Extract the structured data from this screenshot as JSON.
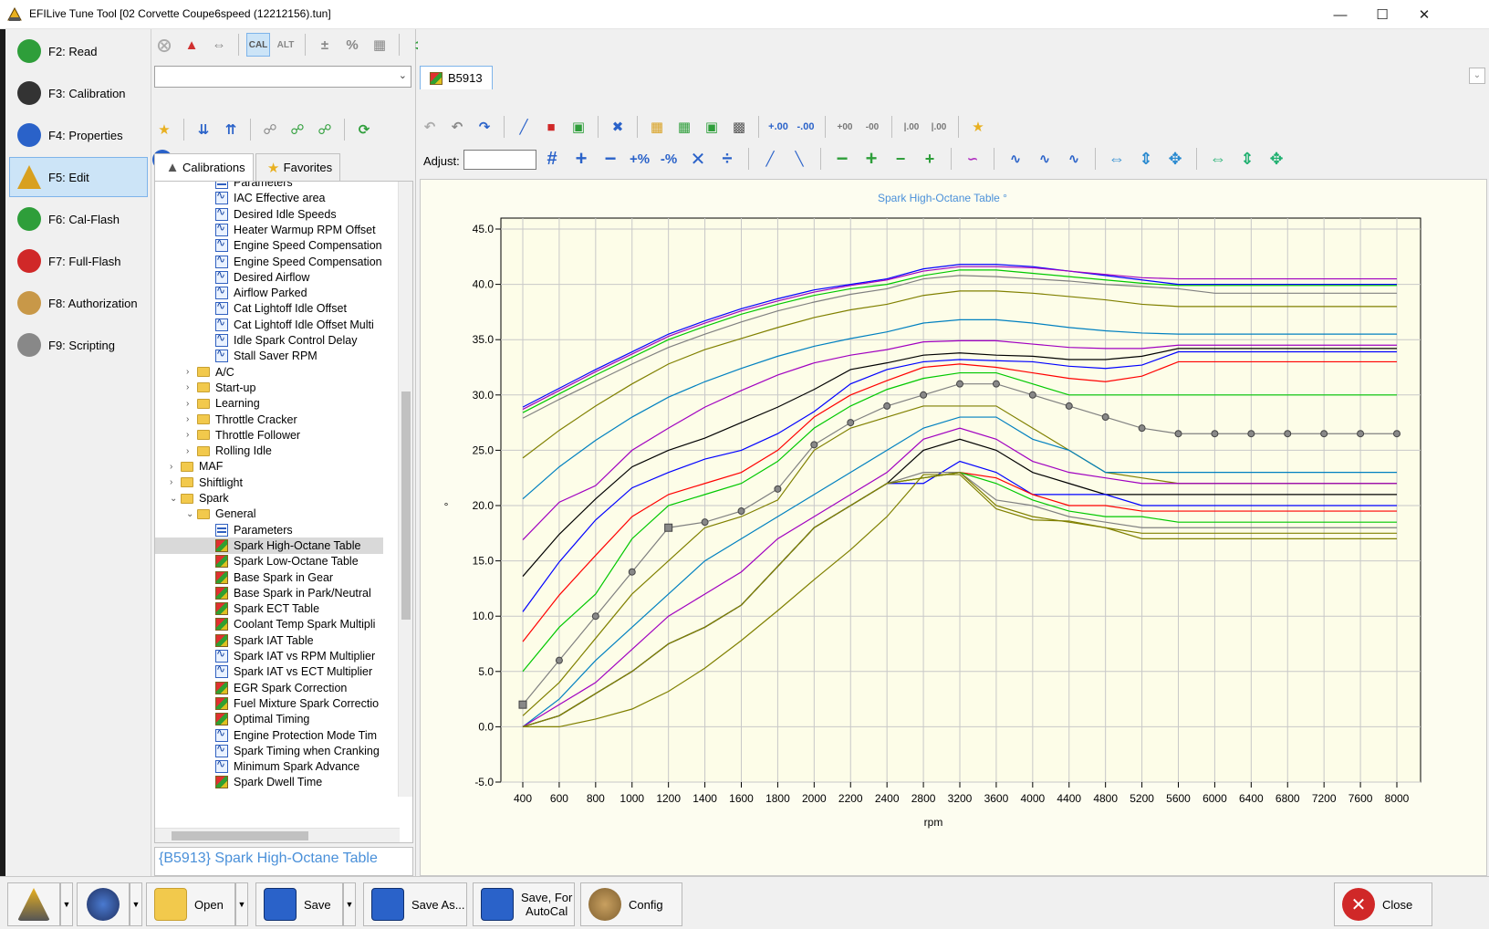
{
  "window": {
    "title": "EFILive Tune Tool [02  Corvette Coupe6speed (12212156).tun]",
    "controls": [
      "minimize",
      "maximize",
      "close"
    ]
  },
  "nav": {
    "items": [
      {
        "label": "F2: Read",
        "icon": "read-icon",
        "color": "#2e9e3a"
      },
      {
        "label": "F3: Calibration",
        "icon": "calibration-icon",
        "color": "#333333"
      },
      {
        "label": "F4: Properties",
        "icon": "info-icon",
        "color": "#2a62c9"
      },
      {
        "label": "F5: Edit",
        "icon": "edit-triangle-icon",
        "color": "#d8a020",
        "active": true
      },
      {
        "label": "F6: Cal-Flash",
        "icon": "cal-flash-icon",
        "color": "#2e9e3a"
      },
      {
        "label": "F7: Full-Flash",
        "icon": "full-flash-icon",
        "color": "#d02828"
      },
      {
        "label": "F8: Authorization",
        "icon": "key-icon",
        "color": "#c89848"
      },
      {
        "label": "F9: Scripting",
        "icon": "scripting-icon",
        "color": "#888888"
      }
    ]
  },
  "tree_panel": {
    "tabs": [
      {
        "label": "Calibrations",
        "active": true
      },
      {
        "label": "Favorites",
        "active": false
      }
    ],
    "rows": [
      {
        "label": "Parameters",
        "indent": 3,
        "icon": "tbl"
      },
      {
        "label": "IAC Effective area",
        "indent": 3,
        "icon": "chart"
      },
      {
        "label": "Desired Idle Speeds",
        "indent": 3,
        "icon": "chart"
      },
      {
        "label": "Heater Warmup RPM Offset",
        "indent": 3,
        "icon": "chart"
      },
      {
        "label": "Engine Speed Compensation",
        "indent": 3,
        "icon": "chart"
      },
      {
        "label": "Engine Speed Compensation",
        "indent": 3,
        "icon": "chart"
      },
      {
        "label": "Desired Airflow",
        "indent": 3,
        "icon": "chart"
      },
      {
        "label": "Airflow Parked",
        "indent": 3,
        "icon": "chart"
      },
      {
        "label": "Cat Lightoff Idle Offset",
        "indent": 3,
        "icon": "chart"
      },
      {
        "label": "Cat Lightoff Idle Offset Multi",
        "indent": 3,
        "icon": "chart"
      },
      {
        "label": "Idle Spark Control Delay",
        "indent": 3,
        "icon": "chart"
      },
      {
        "label": "Stall Saver RPM",
        "indent": 3,
        "icon": "chart"
      },
      {
        "label": "A/C",
        "indent": 2,
        "icon": "folder",
        "caret": "›"
      },
      {
        "label": "Start-up",
        "indent": 2,
        "icon": "folder",
        "caret": "›"
      },
      {
        "label": "Learning",
        "indent": 2,
        "icon": "folder",
        "caret": "›"
      },
      {
        "label": "Throttle Cracker",
        "indent": 2,
        "icon": "folder",
        "caret": "›"
      },
      {
        "label": "Throttle Follower",
        "indent": 2,
        "icon": "folder",
        "caret": "›"
      },
      {
        "label": "Rolling Idle",
        "indent": 2,
        "icon": "folder",
        "caret": "›"
      },
      {
        "label": "MAF",
        "indent": 1,
        "icon": "folder",
        "caret": "›"
      },
      {
        "label": "Shiftlight",
        "indent": 1,
        "icon": "folder",
        "caret": "›"
      },
      {
        "label": "Spark",
        "indent": 1,
        "icon": "folder",
        "caret": "⌄"
      },
      {
        "label": "General",
        "indent": 2,
        "icon": "folder",
        "caret": "⌄"
      },
      {
        "label": "Parameters",
        "indent": 3,
        "icon": "tbl"
      },
      {
        "label": "Spark High-Octane Table",
        "indent": 3,
        "icon": "cube",
        "selected": true
      },
      {
        "label": "Spark Low-Octane Table",
        "indent": 3,
        "icon": "cube"
      },
      {
        "label": "Base Spark in Gear",
        "indent": 3,
        "icon": "cube"
      },
      {
        "label": "Base Spark in Park/Neutral",
        "indent": 3,
        "icon": "cube"
      },
      {
        "label": "Spark ECT Table",
        "indent": 3,
        "icon": "cube"
      },
      {
        "label": "Coolant Temp Spark Multipli",
        "indent": 3,
        "icon": "cube"
      },
      {
        "label": "Spark IAT Table",
        "indent": 3,
        "icon": "cube"
      },
      {
        "label": "Spark IAT vs RPM Multiplier",
        "indent": 3,
        "icon": "chart"
      },
      {
        "label": "Spark IAT vs ECT Multiplier",
        "indent": 3,
        "icon": "chart"
      },
      {
        "label": "EGR Spark Correction",
        "indent": 3,
        "icon": "cube"
      },
      {
        "label": "Fuel Mixture Spark Correctio",
        "indent": 3,
        "icon": "cube"
      },
      {
        "label": "Optimal Timing",
        "indent": 3,
        "icon": "cube"
      },
      {
        "label": "Engine Protection Mode Tim",
        "indent": 3,
        "icon": "chart"
      },
      {
        "label": "Spark Timing when Cranking",
        "indent": 3,
        "icon": "chart"
      },
      {
        "label": "Minimum Spark Advance",
        "indent": 3,
        "icon": "chart"
      },
      {
        "label": "Spark Dwell Time",
        "indent": 3,
        "icon": "cube"
      }
    ],
    "status_text": "{B5913} Spark High-Octane Table"
  },
  "editor": {
    "tab_label": "B5913",
    "adjust_label": "Adjust:",
    "adjust_value": ""
  },
  "bottom_bar": {
    "open_label": "Open",
    "save_label": "Save",
    "save_as_label": "Save As...",
    "save_autocal_line1": "Save, For",
    "save_autocal_line2": "AutoCal",
    "config_label": "Config",
    "close_label": "Close"
  },
  "colors": {
    "series": [
      "#7a00c8",
      "#00c800",
      "#808080",
      "#808000",
      "#0080c0",
      "#000000",
      "#ff0000",
      "#0000ff",
      "#a000c0"
    ]
  },
  "chart_data": {
    "type": "line",
    "title": "Spark High-Octane Table °",
    "xlabel": "rpm",
    "ylabel": "°",
    "x": [
      400,
      600,
      800,
      1000,
      1200,
      1400,
      1600,
      1800,
      2000,
      2200,
      2400,
      2800,
      3200,
      3600,
      4000,
      4400,
      4800,
      5200,
      5600,
      6000,
      6400,
      6800,
      7200,
      7600,
      8000
    ],
    "ylim": [
      -5,
      45
    ],
    "yticks": [
      -5.0,
      0.0,
      5.0,
      10.0,
      15.0,
      20.0,
      25.0,
      30.0,
      35.0,
      40.0,
      45.0
    ],
    "grid": true,
    "selected_series_index": 9,
    "series": [
      {
        "color": "#0000ff",
        "values": [
          28.9,
          30.6,
          32.3,
          33.9,
          35.5,
          36.7,
          37.8,
          38.7,
          39.5,
          40.0,
          40.5,
          41.4,
          41.8,
          41.8,
          41.6,
          41.2,
          40.8,
          40.4,
          40.0,
          40.0,
          40.0,
          40.0,
          40.0,
          40.0,
          40.0
        ]
      },
      {
        "color": "#a000c0",
        "values": [
          28.7,
          30.4,
          32.1,
          33.7,
          35.3,
          36.5,
          37.6,
          38.5,
          39.3,
          39.9,
          40.4,
          41.2,
          41.6,
          41.6,
          41.5,
          41.2,
          40.9,
          40.6,
          40.5,
          40.5,
          40.5,
          40.5,
          40.5,
          40.5,
          40.5
        ]
      },
      {
        "color": "#00c800",
        "values": [
          28.4,
          30.1,
          31.8,
          33.4,
          35.0,
          36.2,
          37.3,
          38.2,
          39.0,
          39.6,
          40.0,
          40.8,
          41.3,
          41.3,
          41.0,
          40.7,
          40.4,
          40.1,
          39.9,
          39.9,
          39.9,
          39.9,
          39.9,
          39.9,
          39.9
        ]
      },
      {
        "color": "#808080",
        "values": [
          27.9,
          29.6,
          31.2,
          32.8,
          34.3,
          35.5,
          36.6,
          37.6,
          38.4,
          39.1,
          39.6,
          40.5,
          40.8,
          40.7,
          40.5,
          40.3,
          40.0,
          39.8,
          39.6,
          39.2,
          39.2,
          39.2,
          39.2,
          39.2,
          39.2
        ]
      },
      {
        "color": "#808000",
        "values": [
          24.3,
          26.8,
          29.0,
          31.0,
          32.8,
          34.1,
          35.1,
          36.1,
          37.0,
          37.7,
          38.2,
          39.0,
          39.4,
          39.4,
          39.2,
          38.9,
          38.6,
          38.2,
          38.0,
          38.0,
          38.0,
          38.0,
          38.0,
          38.0,
          38.0
        ]
      },
      {
        "color": "#0080c0",
        "values": [
          20.6,
          23.5,
          25.9,
          28.0,
          29.8,
          31.2,
          32.4,
          33.5,
          34.4,
          35.1,
          35.7,
          36.5,
          36.8,
          36.8,
          36.5,
          36.1,
          35.8,
          35.6,
          35.5,
          35.5,
          35.5,
          35.5,
          35.5,
          35.5,
          35.5
        ]
      },
      {
        "color": "#a000c0",
        "values": [
          16.9,
          20.3,
          21.8,
          25.0,
          27.0,
          28.9,
          30.4,
          31.8,
          32.9,
          33.6,
          34.1,
          34.8,
          34.9,
          34.9,
          34.6,
          34.3,
          34.2,
          34.2,
          34.5,
          34.5,
          34.5,
          34.5,
          34.5,
          34.5,
          34.5
        ]
      },
      {
        "color": "#000000",
        "values": [
          13.6,
          17.4,
          20.6,
          23.5,
          25.0,
          26.1,
          27.5,
          28.9,
          30.5,
          32.3,
          32.9,
          33.6,
          33.8,
          33.6,
          33.5,
          33.2,
          33.2,
          33.5,
          34.2,
          34.2,
          34.2,
          34.2,
          34.2,
          34.2,
          34.2
        ]
      },
      {
        "color": "#0000ff",
        "values": [
          10.4,
          14.9,
          18.7,
          21.6,
          23.0,
          24.2,
          25.0,
          26.5,
          28.5,
          31.0,
          32.3,
          33.0,
          33.2,
          33.1,
          33.0,
          32.6,
          32.4,
          32.7,
          33.9,
          33.9,
          33.9,
          33.9,
          33.9,
          33.9,
          33.9
        ]
      },
      {
        "color": "#808080",
        "values": [
          2.0,
          6.0,
          10.0,
          14.0,
          18.0,
          18.5,
          19.5,
          21.5,
          25.5,
          27.5,
          29.0,
          30.0,
          31.0,
          31.0,
          30.0,
          29.0,
          28.0,
          27.0,
          26.5,
          26.5,
          26.5,
          26.5,
          26.5,
          26.5,
          26.5
        ],
        "markers": true
      },
      {
        "color": "#ff0000",
        "values": [
          7.7,
          11.9,
          15.5,
          19.0,
          21.0,
          22.0,
          23.0,
          25.0,
          28.0,
          30.0,
          31.3,
          32.5,
          32.8,
          32.5,
          32.0,
          31.5,
          31.2,
          31.7,
          33.0,
          33.0,
          33.0,
          33.0,
          33.0,
          33.0,
          33.0
        ]
      },
      {
        "color": "#00c800",
        "values": [
          5.0,
          9.0,
          12.0,
          17.0,
          20.0,
          21.0,
          22.0,
          24.0,
          27.0,
          29.0,
          30.5,
          31.5,
          32.0,
          32.0,
          31.0,
          30.0,
          30.0,
          30.0,
          30.0,
          30.0,
          30.0,
          30.0,
          30.0,
          30.0,
          30.0
        ]
      },
      {
        "color": "#808000",
        "values": [
          1.0,
          4.0,
          8.0,
          12.0,
          15.0,
          18.0,
          19.0,
          20.5,
          25.0,
          27.0,
          28.0,
          29.0,
          29.0,
          29.0,
          27.0,
          25.0,
          23.0,
          22.5,
          22.0,
          22.0,
          22.0,
          22.0,
          22.0,
          22.0,
          22.0
        ]
      },
      {
        "color": "#0080c0",
        "values": [
          0.0,
          2.5,
          6.0,
          9.0,
          12.0,
          15.0,
          17.0,
          19.0,
          21.0,
          23.0,
          25.0,
          27.0,
          28.0,
          28.0,
          26.0,
          25.0,
          23.0,
          23.0,
          23.0,
          23.0,
          23.0,
          23.0,
          23.0,
          23.0,
          23.0
        ]
      },
      {
        "color": "#a000c0",
        "values": [
          0.0,
          2.0,
          4.0,
          7.0,
          10.0,
          12.0,
          14.0,
          17.0,
          19.0,
          21.0,
          23.0,
          26.0,
          27.0,
          26.0,
          24.0,
          23.0,
          22.5,
          22.0,
          22.0,
          22.0,
          22.0,
          22.0,
          22.0,
          22.0,
          22.0
        ]
      },
      {
        "color": "#000000",
        "values": [
          0.0,
          1.0,
          3.0,
          5.0,
          7.5,
          9.0,
          11.0,
          14.5,
          18.0,
          20.0,
          22.0,
          25.0,
          26.0,
          25.0,
          23.0,
          22.0,
          21.0,
          21.0,
          21.0,
          21.0,
          21.0,
          21.0,
          21.0,
          21.0,
          21.0
        ]
      },
      {
        "color": "#0000ff",
        "values": [
          0.0,
          1.0,
          3.0,
          5.0,
          7.5,
          9.0,
          11.0,
          14.5,
          18.0,
          20.0,
          22.0,
          22.0,
          24.0,
          23.0,
          21.0,
          21.0,
          21.0,
          20.0,
          20.0,
          20.0,
          20.0,
          20.0,
          20.0,
          20.0,
          20.0
        ]
      },
      {
        "color": "#ff0000",
        "values": [
          0.0,
          1.0,
          3.0,
          5.0,
          7.5,
          9.0,
          11.0,
          14.5,
          18.0,
          20.0,
          22.0,
          22.5,
          23.0,
          22.5,
          21.0,
          20.0,
          20.0,
          19.5,
          19.5,
          19.5,
          19.5,
          19.5,
          19.5,
          19.5,
          19.5
        ]
      },
      {
        "color": "#00c800",
        "values": [
          0.0,
          1.0,
          3.0,
          5.0,
          7.5,
          9.0,
          11.0,
          14.5,
          18.0,
          20.0,
          22.0,
          22.5,
          23.0,
          22.0,
          20.5,
          19.5,
          19.0,
          19.0,
          18.5,
          18.5,
          18.5,
          18.5,
          18.5,
          18.5,
          18.5
        ]
      },
      {
        "color": "#808080",
        "values": [
          0.0,
          1.0,
          3.0,
          5.0,
          7.5,
          9.0,
          11.0,
          14.5,
          18.0,
          20.0,
          22.0,
          23.0,
          23.0,
          20.5,
          20.0,
          19.0,
          18.5,
          18.0,
          18.0,
          18.0,
          18.0,
          18.0,
          18.0,
          18.0,
          18.0
        ]
      },
      {
        "color": "#808000",
        "values": [
          0.0,
          1.0,
          3.0,
          5.0,
          7.5,
          9.0,
          11.0,
          14.5,
          18.0,
          20.0,
          22.0,
          22.5,
          23.0,
          20.0,
          19.0,
          18.5,
          18.0,
          17.5,
          17.5,
          17.5,
          17.5,
          17.5,
          17.5,
          17.5,
          17.5
        ]
      },
      {
        "color": "#808000",
        "values": [
          0.0,
          0.0,
          0.7,
          1.6,
          3.2,
          5.3,
          7.8,
          10.5,
          13.3,
          16.0,
          19.0,
          22.8,
          22.8,
          19.7,
          18.7,
          18.6,
          18.0,
          17.0,
          17.0,
          17.0,
          17.0,
          17.0,
          17.0,
          17.0,
          17.0
        ]
      }
    ]
  }
}
